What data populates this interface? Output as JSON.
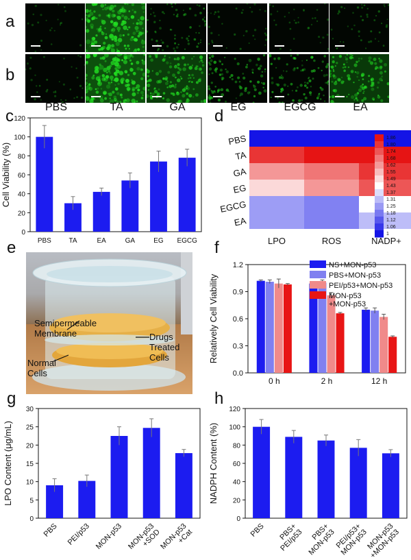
{
  "panel_labels": {
    "a": "a",
    "b": "b",
    "c": "c",
    "d": "d",
    "e": "e",
    "f": "f",
    "g": "g",
    "h": "h"
  },
  "micrographs": {
    "columns": [
      "PBS",
      "TA",
      "GA",
      "EG",
      "EGCG",
      "EA"
    ],
    "row_a_brightness": [
      0.03,
      1.0,
      0.35,
      0.12,
      0.1,
      0.18
    ],
    "row_b_brightness": [
      0.12,
      1.0,
      0.75,
      0.55,
      0.5,
      0.7
    ],
    "cell_color": "#22dd22"
  },
  "colors": {
    "bar_blue": "#1c1cf0",
    "light_blue": "#8080f0",
    "pink": "#f08a8a",
    "red": "#e81515"
  },
  "photo": {
    "label_membrane": "Semipermeable\nMembrane",
    "label_drugs": "Drugs\nTreated\nCells",
    "label_normal": "Normal\nCells"
  },
  "chart_data": [
    {
      "id": "c",
      "type": "bar",
      "categories": [
        "PBS",
        "TA",
        "EA",
        "GA",
        "EG",
        "EGCG"
      ],
      "values": [
        100,
        30,
        42,
        54,
        74,
        78
      ],
      "errors": [
        12,
        7,
        4,
        8,
        11,
        9
      ],
      "ylabel": "Cell Viability (%)",
      "ylim": [
        0,
        120
      ],
      "yticks": [
        0,
        20,
        40,
        60,
        80,
        100,
        120
      ]
    },
    {
      "id": "d",
      "type": "heatmap",
      "rows": [
        "PBS",
        "TA",
        "GA",
        "EG",
        "EGCG",
        "EA"
      ],
      "columns": [
        "LPO",
        "ROS",
        "NADP+\n/NADPH"
      ],
      "values": [
        [
          1.0,
          1.0,
          1.0
        ],
        [
          1.8,
          1.86,
          1.86
        ],
        [
          1.62,
          1.68,
          1.8
        ],
        [
          1.5,
          1.62,
          1.74
        ],
        [
          1.25,
          1.2,
          1.43
        ],
        [
          1.25,
          1.2,
          1.31
        ]
      ],
      "colorbar_ticks": [
        "1.86",
        "1.80",
        "1.74",
        "1.68",
        "1.62",
        "1.55",
        "1.49",
        "1.43",
        "1.37",
        "1.31",
        "1.25",
        "1.18",
        "1.12",
        "1.06",
        "1"
      ]
    },
    {
      "id": "f",
      "type": "bar",
      "categories": [
        "0 h",
        "2 h",
        "12 h"
      ],
      "series": [
        {
          "name": "NS+MON-p53",
          "values": [
            1.02,
            0.99,
            0.7
          ],
          "errors": [
            0.01,
            0.01,
            0.02
          ]
        },
        {
          "name": "PBS+MON-p53",
          "values": [
            1.01,
            1.0,
            0.69
          ],
          "errors": [
            0.02,
            0.03,
            0.03
          ]
        },
        {
          "name": "PEI/p53+MON-p53",
          "values": [
            0.99,
            0.86,
            0.62
          ],
          "errors": [
            0.05,
            0.03,
            0.03
          ]
        },
        {
          "name": "MON-p53\n+MON-p53",
          "values": [
            0.98,
            0.66,
            0.4
          ],
          "errors": [
            0.01,
            0.01,
            0.01
          ]
        }
      ],
      "ylabel": "Relatively Cell Viability",
      "ylim": [
        0,
        1.2
      ],
      "yticks": [
        "0.0",
        "0.3",
        "0.6",
        "0.9",
        "1.2"
      ]
    },
    {
      "id": "g",
      "type": "bar",
      "categories": [
        "PBS",
        "PEI/p53",
        "MON-p53",
        "MON-p53\n+SOD",
        "MON-p53\n+Cat"
      ],
      "values": [
        9,
        10.2,
        22.5,
        24.7,
        17.8
      ],
      "errors": [
        1.8,
        1.6,
        2.5,
        2.5,
        1.0
      ],
      "ylabel": "LPO Content (μg/mL)",
      "ylim": [
        0,
        30
      ],
      "yticks": [
        0,
        5,
        10,
        15,
        20,
        25,
        30
      ]
    },
    {
      "id": "h",
      "type": "bar",
      "categories": [
        "PBS",
        "PBS+\nPEI/p53",
        "PBS+\nMON-p53",
        "PEI/p53+\nMON-p53",
        "MON-p53\n+MON-p53"
      ],
      "values": [
        100,
        89,
        85,
        77,
        71
      ],
      "errors": [
        8,
        7,
        6,
        9,
        4
      ],
      "ylabel": "NADPH Content (%)",
      "ylim": [
        0,
        120
      ],
      "yticks": [
        0,
        20,
        40,
        60,
        80,
        100,
        120
      ]
    }
  ]
}
